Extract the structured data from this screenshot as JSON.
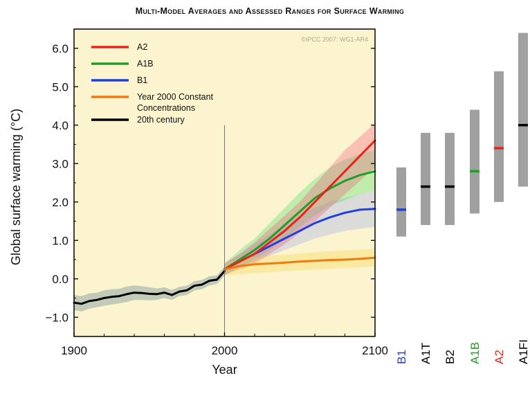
{
  "title": "Multi-Model Averages and Assessed Ranges for Surface Warming",
  "copyright": "©IPCC 2007: WG1-AR4",
  "colors": {
    "plot_bg": "#fcf4cf",
    "A2": "#e8231c",
    "A1B": "#1f9e28",
    "B1": "#1f3fe0",
    "Year2000": "#f07a10",
    "20th": "#000000",
    "range_bar": "#a0a0a0"
  },
  "chart_data": {
    "type": "line",
    "title": "Multi-Model Averages and Assessed Ranges for Surface Warming",
    "xlabel": "Year",
    "ylabel": "Global surface warming (°C)",
    "xlim": [
      1900,
      2100
    ],
    "ylim": [
      -1.5,
      6.5
    ],
    "x_ticks": [
      "1900",
      "2000",
      "2100"
    ],
    "y_ticks": [
      "-1.0",
      "0.0",
      "1.0",
      "2.0",
      "3.0",
      "4.0",
      "5.0",
      "6.0"
    ],
    "legend_position": "top-left",
    "series": [
      {
        "name": "A2",
        "key": "A2",
        "x": [
          2000,
          2010,
          2020,
          2030,
          2040,
          2050,
          2060,
          2070,
          2080,
          2090,
          2100
        ],
        "y": [
          0.25,
          0.45,
          0.65,
          0.95,
          1.25,
          1.6,
          2.0,
          2.4,
          2.8,
          3.2,
          3.6
        ],
        "band_low": [
          0.1,
          0.25,
          0.4,
          0.65,
          0.9,
          1.2,
          1.5,
          1.85,
          2.2,
          2.55,
          2.9
        ],
        "band_high": [
          0.4,
          0.65,
          0.95,
          1.3,
          1.65,
          2.0,
          2.45,
          2.9,
          3.35,
          3.7,
          4.05
        ]
      },
      {
        "name": "A1B",
        "key": "A1B",
        "x": [
          2000,
          2010,
          2020,
          2030,
          2040,
          2050,
          2060,
          2070,
          2080,
          2090,
          2100
        ],
        "y": [
          0.25,
          0.5,
          0.75,
          1.05,
          1.4,
          1.75,
          2.1,
          2.35,
          2.55,
          2.7,
          2.8
        ],
        "band_low": [
          0.1,
          0.3,
          0.5,
          0.75,
          1.05,
          1.35,
          1.65,
          1.9,
          2.05,
          2.2,
          2.3
        ],
        "band_high": [
          0.4,
          0.75,
          1.05,
          1.45,
          1.85,
          2.25,
          2.6,
          2.9,
          3.1,
          3.25,
          3.35
        ]
      },
      {
        "name": "B1",
        "key": "B1",
        "x": [
          2000,
          2010,
          2020,
          2030,
          2040,
          2050,
          2060,
          2070,
          2080,
          2090,
          2100
        ],
        "y": [
          0.25,
          0.45,
          0.65,
          0.85,
          1.05,
          1.25,
          1.45,
          1.6,
          1.72,
          1.8,
          1.82
        ],
        "band_low": [
          0.1,
          0.3,
          0.45,
          0.6,
          0.75,
          0.9,
          1.05,
          1.15,
          1.25,
          1.3,
          1.35
        ],
        "band_high": [
          0.4,
          0.65,
          0.9,
          1.15,
          1.4,
          1.65,
          1.85,
          2.0,
          2.1,
          2.2,
          2.3
        ]
      },
      {
        "name": "Year 2000 Constant Concentrations",
        "key": "Year2000",
        "x": [
          2000,
          2010,
          2020,
          2030,
          2040,
          2050,
          2060,
          2070,
          2080,
          2090,
          2100
        ],
        "y": [
          0.25,
          0.33,
          0.38,
          0.4,
          0.42,
          0.45,
          0.47,
          0.49,
          0.5,
          0.52,
          0.55
        ],
        "band_low": [
          0.1,
          0.12,
          0.15,
          0.17,
          0.2,
          0.22,
          0.24,
          0.26,
          0.28,
          0.3,
          0.32
        ],
        "band_high": [
          0.4,
          0.5,
          0.57,
          0.6,
          0.63,
          0.66,
          0.69,
          0.72,
          0.74,
          0.76,
          0.78
        ]
      },
      {
        "name": "20th century",
        "key": "20th",
        "x": [
          1900,
          1905,
          1910,
          1915,
          1920,
          1925,
          1930,
          1935,
          1940,
          1945,
          1950,
          1955,
          1960,
          1965,
          1970,
          1975,
          1980,
          1985,
          1990,
          1995,
          2000
        ],
        "y": [
          -0.62,
          -0.65,
          -0.58,
          -0.55,
          -0.5,
          -0.47,
          -0.45,
          -0.4,
          -0.36,
          -0.37,
          -0.39,
          -0.4,
          -0.36,
          -0.42,
          -0.33,
          -0.3,
          -0.18,
          -0.15,
          -0.05,
          -0.02,
          0.2
        ],
        "band_low": [
          -0.82,
          -0.85,
          -0.78,
          -0.74,
          -0.7,
          -0.67,
          -0.64,
          -0.6,
          -0.55,
          -0.55,
          -0.56,
          -0.55,
          -0.5,
          -0.55,
          -0.45,
          -0.42,
          -0.3,
          -0.27,
          -0.17,
          -0.13,
          0.08
        ],
        "band_high": [
          -0.42,
          -0.45,
          -0.38,
          -0.36,
          -0.3,
          -0.27,
          -0.26,
          -0.2,
          -0.17,
          -0.19,
          -0.22,
          -0.25,
          -0.22,
          -0.29,
          -0.21,
          -0.18,
          -0.06,
          -0.03,
          0.07,
          0.09,
          0.32
        ]
      }
    ],
    "ranges": [
      {
        "label": "B1",
        "low": 1.1,
        "high": 2.9,
        "best": 1.8,
        "key": "B1"
      },
      {
        "label": "A1T",
        "low": 1.4,
        "high": 3.8,
        "best": 2.4,
        "key": "20th"
      },
      {
        "label": "B2",
        "low": 1.4,
        "high": 3.8,
        "best": 2.4,
        "key": "20th"
      },
      {
        "label": "A1B",
        "low": 1.7,
        "high": 4.4,
        "best": 2.8,
        "key": "A1B"
      },
      {
        "label": "A2",
        "low": 2.0,
        "high": 5.4,
        "best": 3.4,
        "key": "A2"
      },
      {
        "label": "A1FI",
        "low": 2.4,
        "high": 6.4,
        "best": 4.0,
        "key": "20th"
      }
    ]
  }
}
